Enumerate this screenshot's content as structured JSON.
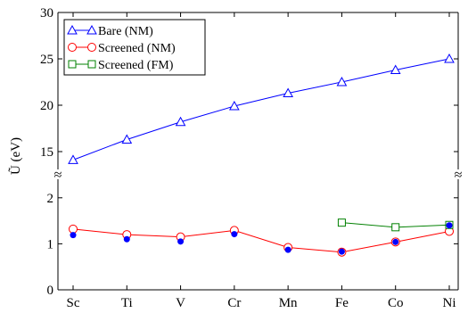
{
  "chart_data": {
    "type": "line",
    "title": "",
    "xlabel": "",
    "ylabel": "Ũ (eV)",
    "categories": [
      "Sc",
      "Ti",
      "V",
      "Cr",
      "Mn",
      "Fe",
      "Co",
      "Ni"
    ],
    "axis_break": {
      "lower_range": [
        0,
        2.5
      ],
      "upper_range": [
        12.5,
        30
      ],
      "lower_ticks": [
        0,
        1,
        2
      ],
      "upper_ticks": [
        15,
        20,
        25,
        30
      ],
      "break_symbol": "≈"
    },
    "legend_position": "top-left",
    "grid": false,
    "series": [
      {
        "name": "Bare (NM)",
        "marker": "open-triangle",
        "color": "#0000ff",
        "x": [
          "Sc",
          "Ti",
          "V",
          "Cr",
          "Mn",
          "Fe",
          "Co",
          "Ni"
        ],
        "values": [
          14.1,
          16.3,
          18.2,
          19.9,
          21.3,
          22.5,
          23.8,
          25.0
        ]
      },
      {
        "name": "Screened (NM)",
        "marker": "open-circle",
        "color": "#ff0000",
        "x": [
          "Sc",
          "Ti",
          "V",
          "Cr",
          "Mn",
          "Fe",
          "Co",
          "Ni"
        ],
        "values": [
          1.32,
          1.2,
          1.15,
          1.29,
          0.92,
          0.82,
          1.04,
          1.27
        ]
      },
      {
        "name": "Screened (FM)",
        "marker": "open-square",
        "color": "#008000",
        "x": [
          "Fe",
          "Co",
          "Ni"
        ],
        "values": [
          1.46,
          1.36,
          1.41
        ]
      },
      {
        "name": "",
        "marker": "filled-dot",
        "color": "#0000ff",
        "x": [
          "Sc",
          "Ti",
          "V",
          "Cr",
          "Mn",
          "Fe",
          "Co",
          "Ni"
        ],
        "values": [
          1.19,
          1.1,
          1.05,
          1.21,
          0.87,
          0.83,
          1.04,
          1.4
        ]
      }
    ]
  }
}
